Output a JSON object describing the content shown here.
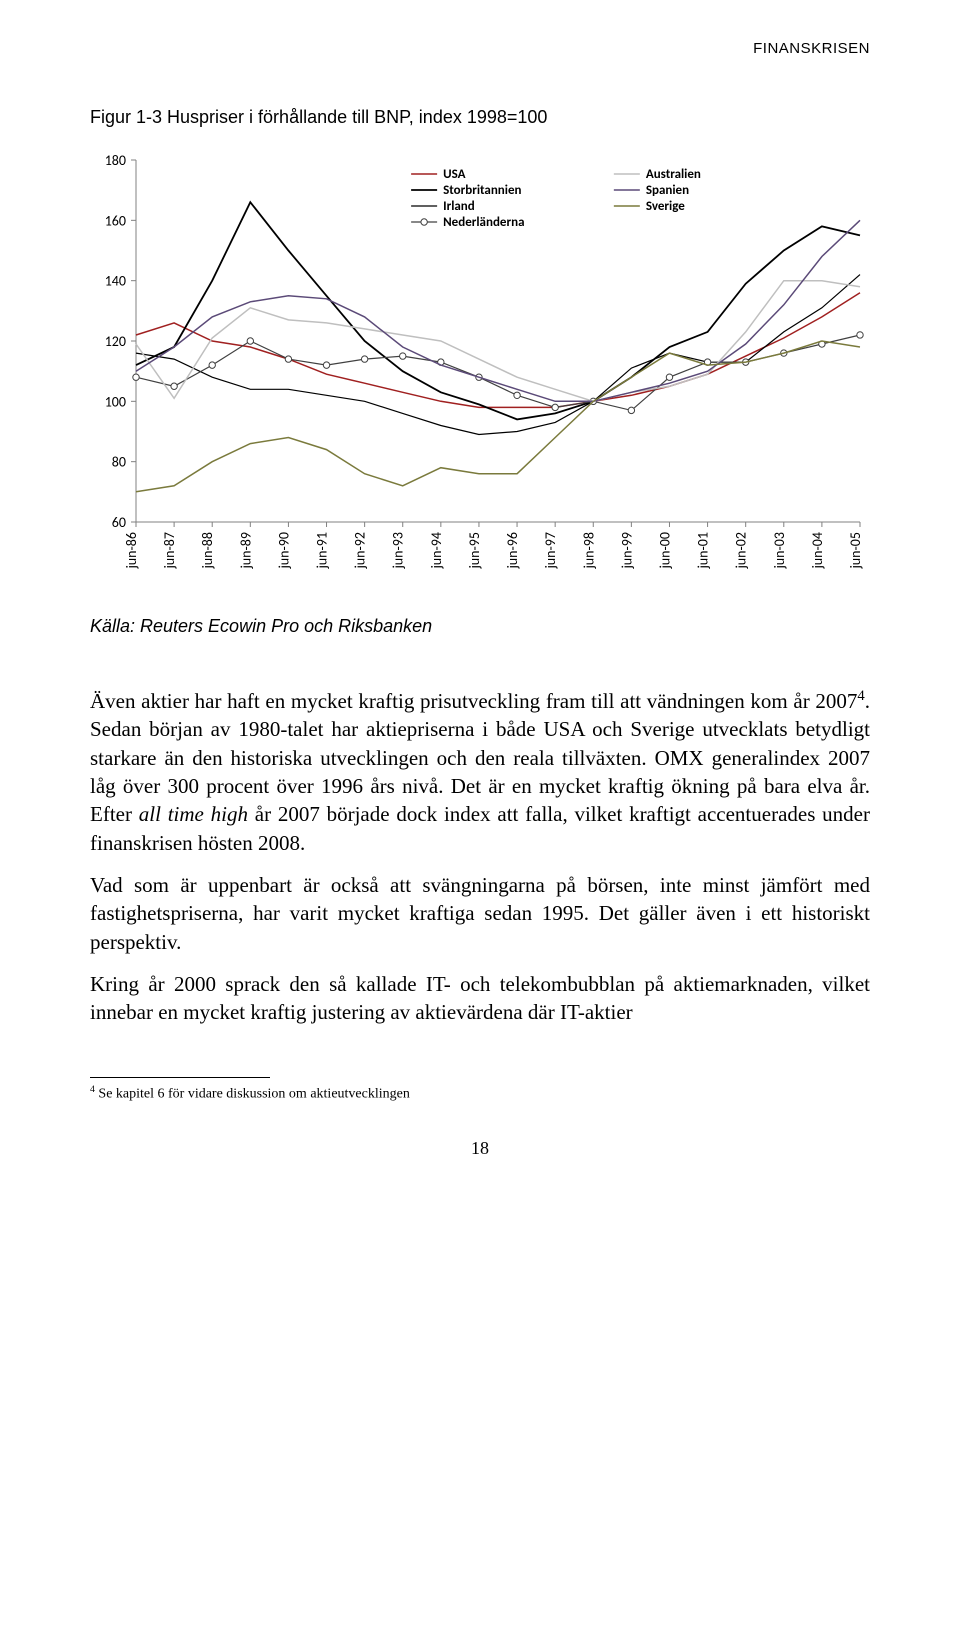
{
  "header": {
    "section": "FINANSKRISEN"
  },
  "figure": {
    "title": "Figur 1-3 Huspriser i förhållande till BNP, index 1998=100",
    "source": "Källa: Reuters Ecowin Pro och Riksbanken",
    "chart": {
      "type": "line",
      "ylim": [
        60,
        180
      ],
      "ytick_step": 20,
      "yticks": [
        60,
        80,
        100,
        120,
        140,
        160,
        180
      ],
      "xticks": [
        "jun-86",
        "jun-87",
        "jun-88",
        "jun-89",
        "jun-90",
        "jun-91",
        "jun-92",
        "jun-93",
        "jun-94",
        "jun-95",
        "jun-96",
        "jun-97",
        "jun-98",
        "jun-99",
        "jun-00",
        "jun-01",
        "jun-02",
        "jun-03",
        "jun-04",
        "jun-05"
      ],
      "background_color": "#ffffff",
      "axis_color": "#808080",
      "tick_fontsize": 14,
      "legend_fontsize": 13,
      "legend": {
        "col1": [
          "USA",
          "Storbritannien",
          "Irland",
          "Nederländerna"
        ],
        "col2": [
          "Australien",
          "Spanien",
          "Sverige"
        ]
      },
      "series": {
        "USA": {
          "label": "USA",
          "color": "#a02020",
          "width": 1.5,
          "marker": "none",
          "values": [
            122,
            126,
            120,
            118,
            114,
            109,
            106,
            103,
            100,
            98,
            98,
            98,
            100,
            102,
            105,
            109,
            115,
            121,
            128,
            136
          ]
        },
        "Storbritannien": {
          "label": "Storbritannien",
          "color": "#000000",
          "width": 1.8,
          "marker": "none",
          "values": [
            112,
            118,
            140,
            166,
            150,
            135,
            120,
            110,
            103,
            99,
            94,
            96,
            100,
            108,
            118,
            123,
            139,
            150,
            158,
            155
          ]
        },
        "Irland": {
          "label": "Irland",
          "color": "#000000",
          "width": 1.2,
          "marker": "none",
          "values": [
            116,
            114,
            108,
            104,
            104,
            102,
            100,
            96,
            92,
            89,
            90,
            93,
            100,
            111,
            116,
            113,
            113,
            123,
            131,
            142
          ]
        },
        "Nederländerna": {
          "label": "Nederländerna",
          "color": "#404040",
          "width": 1.2,
          "marker": "circle",
          "values": [
            108,
            105,
            112,
            120,
            114,
            112,
            114,
            115,
            113,
            108,
            102,
            98,
            100,
            97,
            108,
            113,
            113,
            116,
            119,
            122
          ]
        },
        "Australien": {
          "label": "Australien",
          "color": "#bfbfbf",
          "width": 1.5,
          "marker": "none",
          "values": [
            119,
            101,
            121,
            131,
            127,
            126,
            124,
            122,
            120,
            114,
            108,
            104,
            100,
            103,
            105,
            109,
            123,
            140,
            140,
            138
          ]
        },
        "Spanien": {
          "label": "Spanien",
          "color": "#5b4a78",
          "width": 1.5,
          "marker": "none",
          "values": [
            110,
            118,
            128,
            133,
            135,
            134,
            128,
            118,
            112,
            108,
            104,
            100,
            100,
            103,
            106,
            110,
            119,
            132,
            148,
            160
          ]
        },
        "Sverige": {
          "label": "Sverige",
          "color": "#7a7a3c",
          "width": 1.5,
          "marker": "none",
          "values": [
            70,
            72,
            80,
            86,
            88,
            84,
            76,
            72,
            78,
            76,
            76,
            88,
            100,
            108,
            116,
            112,
            113,
            116,
            120,
            118
          ]
        }
      }
    }
  },
  "paragraphs": {
    "p1_a": "Även aktier har haft en mycket kraftig prisutveckling fram till att vändningen kom år 2007",
    "p1_sup": "4",
    "p1_b": ". Sedan början av 1980-talet har aktiepriserna i både USA och Sverige utvecklats betydligt starkare än den historiska utvecklingen och den reala tillväxten. OMX generalindex 2007 låg över 300 procent över 1996 års nivå. Det är en mycket kraftig ökning på bara elva år. Efter ",
    "p1_ital": "all time high",
    "p1_c": " år 2007 började dock index att falla, vilket kraftigt accentuerades under finanskrisen hösten 2008.",
    "p2": "Vad som är uppenbart är också att svängningarna på börsen, inte minst jämfört med fastighetspriserna, har varit mycket kraftiga sedan 1995. Det gäller även i ett historiskt perspektiv.",
    "p3": "Kring år 2000 sprack den så kallade IT- och telekombubblan på aktiemarknaden, vilket innebar en mycket kraftig justering av aktievärdena där IT-aktier"
  },
  "footnote": {
    "marker": "4",
    "text": " Se kapitel 6 för vidare diskussion om aktieutvecklingen"
  },
  "page_number": "18"
}
